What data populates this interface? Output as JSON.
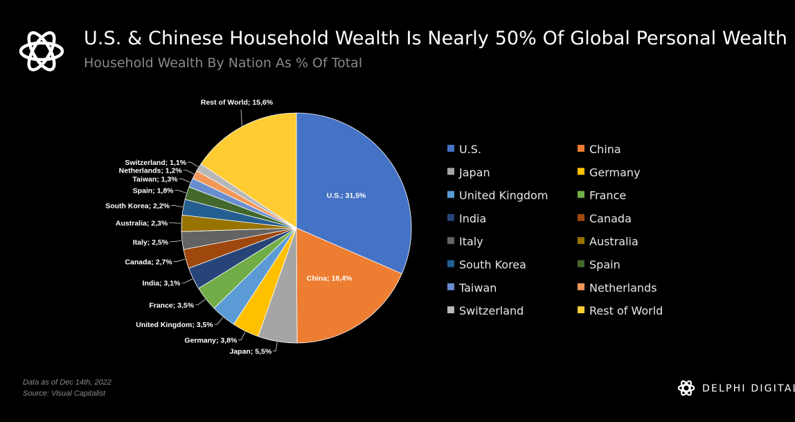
{
  "header": {
    "title": "U.S. & Chinese Household Wealth Is Nearly 50% Of Global Personal Wealth",
    "subtitle": "Household Wealth By Nation As % Of Total"
  },
  "footer": {
    "note_line1": "Data as of Dec 14th, 2022",
    "note_line2": "Source: Visual Capitalist",
    "brand": "DELPHI DIGITAL"
  },
  "icons": {
    "logo": "knot-logo-icon",
    "brand_logo": "knot-logo-icon"
  },
  "chart_data": {
    "type": "pie",
    "series": [
      {
        "name": "U.S.",
        "value": 31.5,
        "label": "U.S.; 31,5%",
        "color": "#4472C4"
      },
      {
        "name": "China",
        "value": 18.4,
        "label": "China; 18,4%",
        "color": "#ED7D31"
      },
      {
        "name": "Japan",
        "value": 5.5,
        "label": "Japan; 5,5%",
        "color": "#A5A5A5"
      },
      {
        "name": "Germany",
        "value": 3.8,
        "label": "Germany; 3,8%",
        "color": "#FFC000"
      },
      {
        "name": "United Kingdom",
        "value": 3.5,
        "label": "United Kingdom; 3,5%",
        "color": "#5B9BD5"
      },
      {
        "name": "France",
        "value": 3.5,
        "label": "France; 3,5%",
        "color": "#70AD47"
      },
      {
        "name": "India",
        "value": 3.1,
        "label": "India; 3,1%",
        "color": "#264478"
      },
      {
        "name": "Canada",
        "value": 2.7,
        "label": "Canada; 2,7%",
        "color": "#9E480E"
      },
      {
        "name": "Italy",
        "value": 2.5,
        "label": "Italy; 2,5%",
        "color": "#636363"
      },
      {
        "name": "Australia",
        "value": 2.3,
        "label": "Australia; 2,3%",
        "color": "#997300"
      },
      {
        "name": "South Korea",
        "value": 2.2,
        "label": "South Korea; 2,2%",
        "color": "#255E91"
      },
      {
        "name": "Spain",
        "value": 1.8,
        "label": "Spain; 1,8%",
        "color": "#43682B"
      },
      {
        "name": "Taiwan",
        "value": 1.3,
        "label": "Taiwan; 1,3%",
        "color": "#698ED0"
      },
      {
        "name": "Netherlands",
        "value": 1.2,
        "label": "Netherlands; 1,2%",
        "color": "#F1975A"
      },
      {
        "name": "Switzerland",
        "value": 1.1,
        "label": "Switzerland; 1,1%",
        "color": "#B7B7B7"
      },
      {
        "name": "Rest of World",
        "value": 15.6,
        "label": "Rest of World; 15,6%",
        "color": "#FFCD33"
      }
    ],
    "legend_position": "right",
    "slice_border_color": "#ffffff"
  }
}
